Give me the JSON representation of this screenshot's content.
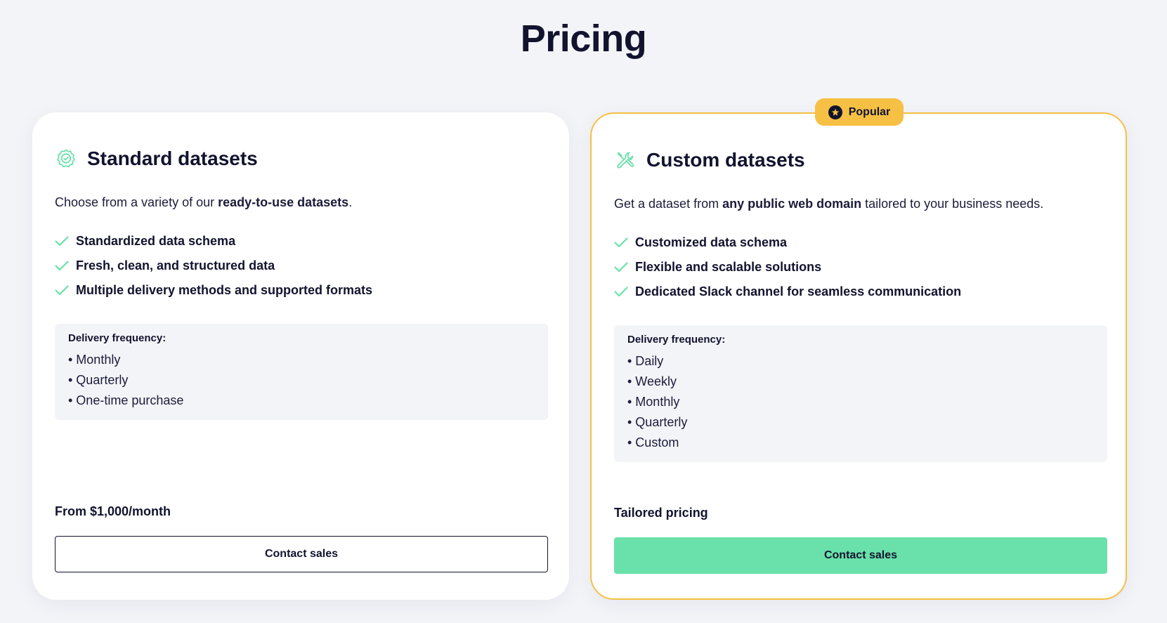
{
  "page": {
    "title": "Pricing"
  },
  "colors": {
    "accent_green": "#6ae1aa",
    "popular_yellow": "#f5c043",
    "text_dark": "#12132e"
  },
  "standard": {
    "icon": "badge-check-icon",
    "title": "Standard datasets",
    "desc_prefix": "Choose from a variety of our ",
    "desc_bold": "ready-to-use datasets",
    "desc_suffix": ".",
    "features": [
      "Standardized data schema",
      "Fresh, clean, and structured data",
      "Multiple delivery methods and supported formats"
    ],
    "frequency_label": "Delivery frequency:",
    "frequencies": [
      "• Monthly",
      "• Quarterly",
      "• One-time purchase"
    ],
    "price": "From $1,000/month",
    "button_label": "Contact sales"
  },
  "custom": {
    "icon": "tools-icon",
    "badge": "Popular",
    "title": "Custom datasets",
    "desc_prefix": "Get a dataset from ",
    "desc_bold": "any public web domain",
    "desc_suffix": " tailored to your business needs.",
    "features": [
      "Customized data schema",
      "Flexible and scalable solutions",
      "Dedicated Slack channel for seamless communication"
    ],
    "frequency_label": "Delivery frequency:",
    "frequencies": [
      "• Daily",
      "• Weekly",
      "• Monthly",
      "• Quarterly",
      "• Custom"
    ],
    "price": "Tailored pricing",
    "button_label": "Contact sales"
  }
}
